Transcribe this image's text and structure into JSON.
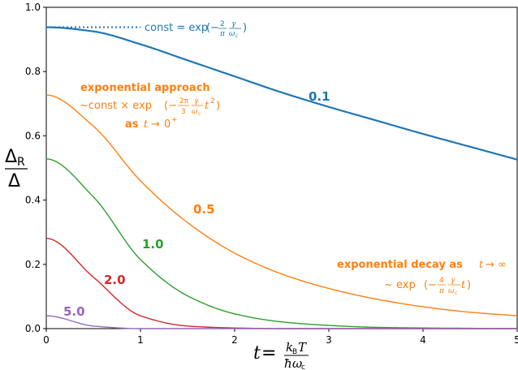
{
  "chart_data": {
    "type": "line",
    "title": "",
    "xlabel": "t = k_B T / ħω_c",
    "ylabel": "Δ_R / Δ",
    "xlim": [
      0,
      5
    ],
    "ylim": [
      0,
      1
    ],
    "x_ticks": [
      "0",
      "1",
      "2",
      "3",
      "4",
      "5"
    ],
    "y_ticks": [
      "0.0",
      "0.2",
      "0.4",
      "0.6",
      "0.8",
      "1.0"
    ],
    "grid": false,
    "series": [
      {
        "name": "0.1",
        "color": "#1f77b4",
        "amplitude": 0.938,
        "gamma": 0.1,
        "linewidth": "thick",
        "x": [
          0,
          0.5,
          1,
          1.5,
          2,
          2.5,
          3,
          3.5,
          4,
          4.5,
          5
        ],
        "y": [
          0.938,
          0.925,
          0.885,
          0.835,
          0.785,
          0.735,
          0.69,
          0.648,
          0.606,
          0.566,
          0.526
        ]
      },
      {
        "name": "0.5",
        "color": "#ff7f0e",
        "amplitude": 0.727,
        "gamma": 0.5,
        "x": [
          0,
          0.5,
          1,
          1.5,
          2,
          2.5,
          3,
          3.5,
          4,
          4.5,
          5
        ],
        "y": [
          0.727,
          0.63,
          0.46,
          0.33,
          0.235,
          0.17,
          0.125,
          0.092,
          0.068,
          0.051,
          0.04
        ]
      },
      {
        "name": "1.0",
        "color": "#2ca02c",
        "amplitude": 0.528,
        "gamma": 1.0,
        "x": [
          0,
          0.5,
          1,
          1.5,
          2,
          2.5,
          3,
          3.5,
          4,
          4.5,
          5
        ],
        "y": [
          0.528,
          0.41,
          0.215,
          0.102,
          0.046,
          0.021,
          0.01,
          0.004,
          0.002,
          0.001,
          0.0
        ]
      },
      {
        "name": "2.0",
        "color": "#d62728",
        "amplitude": 0.281,
        "gamma": 2.0,
        "x": [
          0,
          0.5,
          1,
          1.5,
          2,
          2.5,
          3,
          3.5,
          4,
          4.5,
          5
        ],
        "y": [
          0.281,
          0.16,
          0.04,
          0.008,
          0.002,
          0.0,
          0.0,
          0.0,
          0.0,
          0.0,
          0.0
        ]
      },
      {
        "name": "5.0",
        "color": "#9467bd",
        "amplitude": 0.04,
        "gamma": 5.0,
        "x": [
          0,
          0.5,
          1,
          1.5,
          2,
          2.5,
          3,
          3.5,
          4,
          4.5,
          5
        ],
        "y": [
          0.04,
          0.008,
          0.0,
          0.0,
          0.0,
          0.0,
          0.0,
          0.0,
          0.0,
          0.0,
          0.0
        ]
      }
    ],
    "annotations": {
      "const_line": {
        "y": 0.938,
        "x_range": [
          0,
          1.0
        ],
        "style": "dotted",
        "color": "#1f77b4",
        "text_prefix": "const = exp",
        "coef": "2",
        "pi": "π",
        "gamma": "γ",
        "omega": "ω",
        "omega_sub": "c"
      },
      "approach": {
        "color": "#ff7f0e",
        "line1": "exponential approach",
        "text_prefix": "~const × exp",
        "coef": "2π",
        "den": "3",
        "gamma": "γ",
        "omega": "ω",
        "omega_sub": "c",
        "var": "t",
        "var_sup": "2",
        "line3": "as",
        "cond_var": "t",
        "arrow": "→",
        "cond_val": "0",
        "cond_sup": "+"
      },
      "decay": {
        "color": "#ff7f0e",
        "line1": "exponential decay as",
        "cond_var": "t",
        "arrow": "→",
        "infinity": "∞",
        "text_prefix": "~ exp",
        "coef": "4",
        "pi": "π",
        "gamma": "γ",
        "omega": "ω",
        "omega_sub": "c",
        "var": "t"
      }
    },
    "axis_text": {
      "xlabel_t": "t",
      "xlabel_eq": " = ",
      "xlabel_num_k": "k",
      "xlabel_num_B": "B",
      "xlabel_num_T": "T",
      "xlabel_den_hbar": "ħ",
      "xlabel_den_omega": "ω",
      "xlabel_den_c": "c",
      "ylabel_delta": "Δ",
      "ylabel_R": "R",
      "ylabel_den": "Δ"
    }
  }
}
